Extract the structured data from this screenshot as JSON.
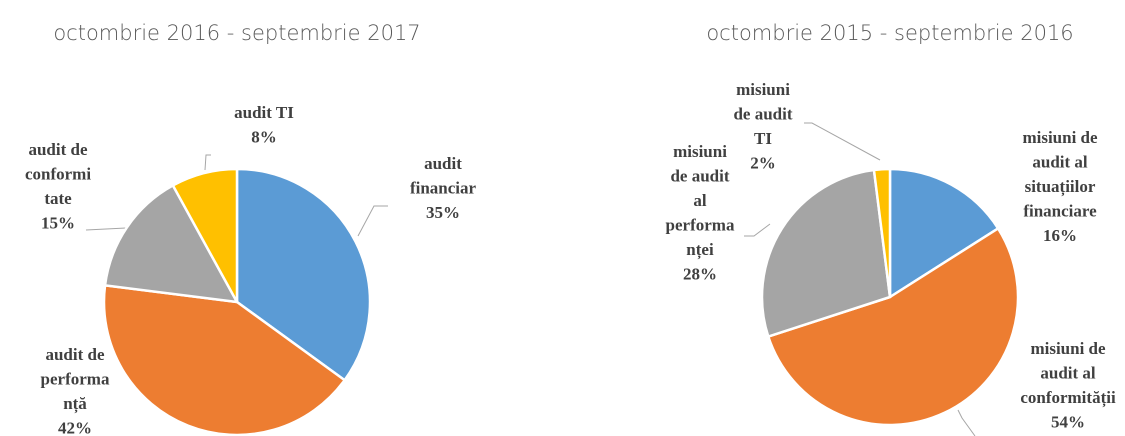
{
  "chart_data": [
    {
      "type": "pie",
      "title": "octombrie 2016 - septembrie 2017",
      "categories": [
        "audit\nfinanciar",
        "audit de\nperforma\nnță",
        "audit de\nconformi\ntate",
        "audit TI"
      ],
      "values": [
        35,
        42,
        15,
        8
      ],
      "value_labels": [
        "35%",
        "42%",
        "15%",
        "8%"
      ],
      "colors": [
        "#5b9bd5",
        "#ed7d31",
        "#a5a5a5",
        "#ffc000"
      ]
    },
    {
      "type": "pie",
      "title": "octombrie 2015 - septembrie 2016",
      "categories": [
        "misiuni de\naudit al\nsituațiilor\nfinanciare",
        "misiuni de\naudit al\nconformității",
        "misiuni\nde audit\nal\nperforma\nnței",
        "misiuni\nde audit\nTI"
      ],
      "values": [
        16,
        54,
        28,
        2
      ],
      "value_labels": [
        "16%",
        "54%",
        "28%",
        "2%"
      ],
      "colors": [
        "#5b9bd5",
        "#ed7d31",
        "#a5a5a5",
        "#ffc000"
      ]
    }
  ]
}
